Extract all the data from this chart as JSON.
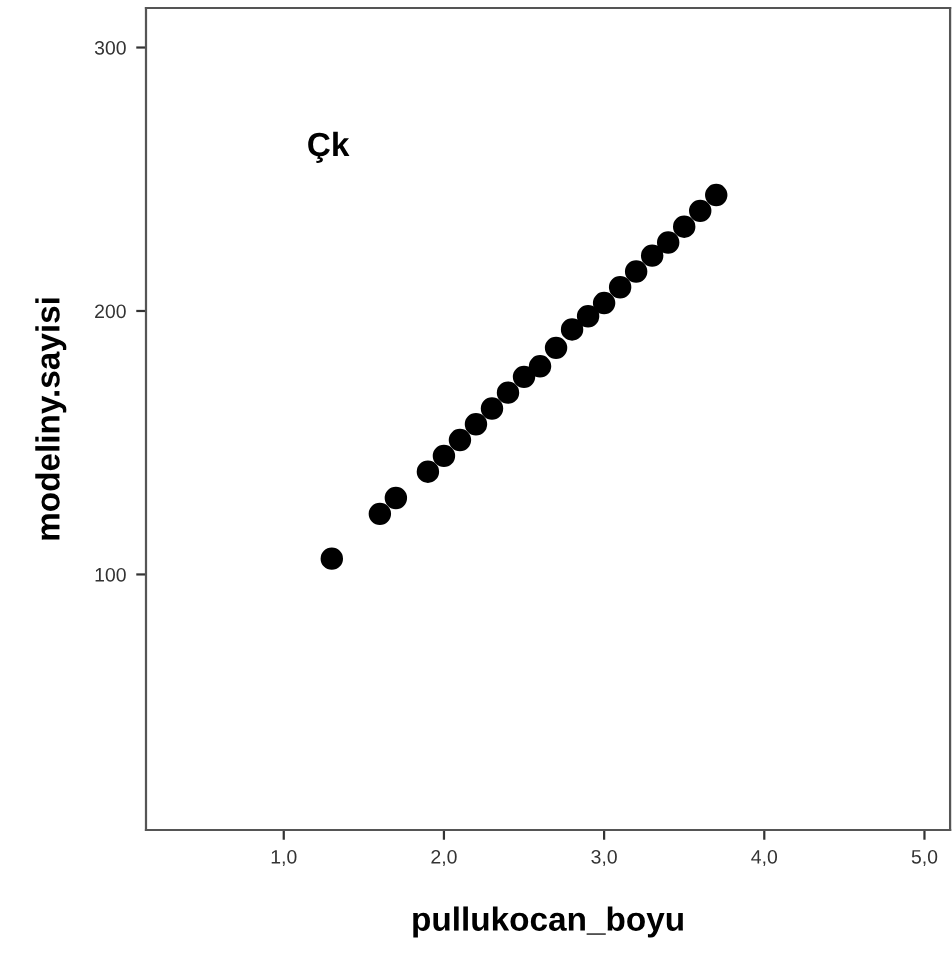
{
  "chart_data": {
    "type": "scatter",
    "xlabel": "pullukocan_boyu",
    "ylabel": "modeliny.sayisi",
    "annotations": [
      "Çk"
    ],
    "x": [
      1.3,
      1.6,
      1.7,
      1.9,
      2.0,
      2.1,
      2.2,
      2.3,
      2.4,
      2.5,
      2.6,
      2.7,
      2.8,
      2.9,
      3.0,
      3.1,
      3.2,
      3.3,
      3.4,
      3.5,
      3.6,
      3.7
    ],
    "series": [
      {
        "color": "#000000",
        "values": [
          106,
          123,
          129,
          139,
          145,
          151,
          157,
          163,
          169,
          175,
          179,
          186,
          193,
          198,
          203,
          209,
          215,
          221,
          226,
          232,
          238,
          244
        ]
      }
    ],
    "xlim": [
      0.14,
      5.16
    ],
    "ylim": [
      3,
      315
    ],
    "xticks": [
      {
        "value": 1,
        "label": "1,0"
      },
      {
        "value": 2,
        "label": "2,0"
      },
      {
        "value": 3,
        "label": "3,0"
      },
      {
        "value": 4,
        "label": "4,0"
      },
      {
        "value": 5,
        "label": "5,0"
      }
    ],
    "yticks": [
      100,
      200,
      300
    ],
    "marker": "circle",
    "grid": false,
    "legend": false
  }
}
